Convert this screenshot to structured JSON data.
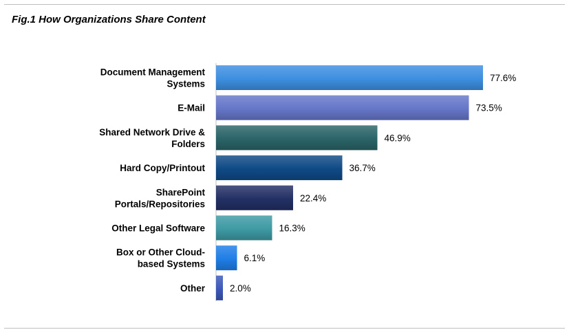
{
  "chart_data": {
    "type": "bar",
    "orientation": "horizontal",
    "title": "Fig.1 How Organizations Share Content",
    "categories": [
      [
        "Document Management",
        "Systems"
      ],
      [
        "E-Mail"
      ],
      [
        "Shared Network Drive &",
        "Folders"
      ],
      [
        "Hard Copy/Printout"
      ],
      [
        "SharePoint",
        "Portals/Repositories"
      ],
      [
        "Other Legal Software"
      ],
      [
        "Box or Other Cloud-",
        "based Systems"
      ],
      [
        "Other"
      ]
    ],
    "values": [
      77.6,
      73.5,
      46.9,
      36.7,
      22.4,
      16.3,
      6.1,
      2.0
    ],
    "value_labels": [
      "77.6%",
      "73.5%",
      "46.9%",
      "36.7%",
      "22.4%",
      "16.3%",
      "6.1%",
      "2.0%"
    ],
    "unit": "%",
    "xlim": [
      0,
      100
    ],
    "grid": false,
    "legend": "none",
    "colors": [
      "#3d8fe0",
      "#6676c8",
      "#2a6468",
      "#0f4a86",
      "#233064",
      "#3e9aa4",
      "#1f7ee6",
      "#3c58b8"
    ]
  }
}
